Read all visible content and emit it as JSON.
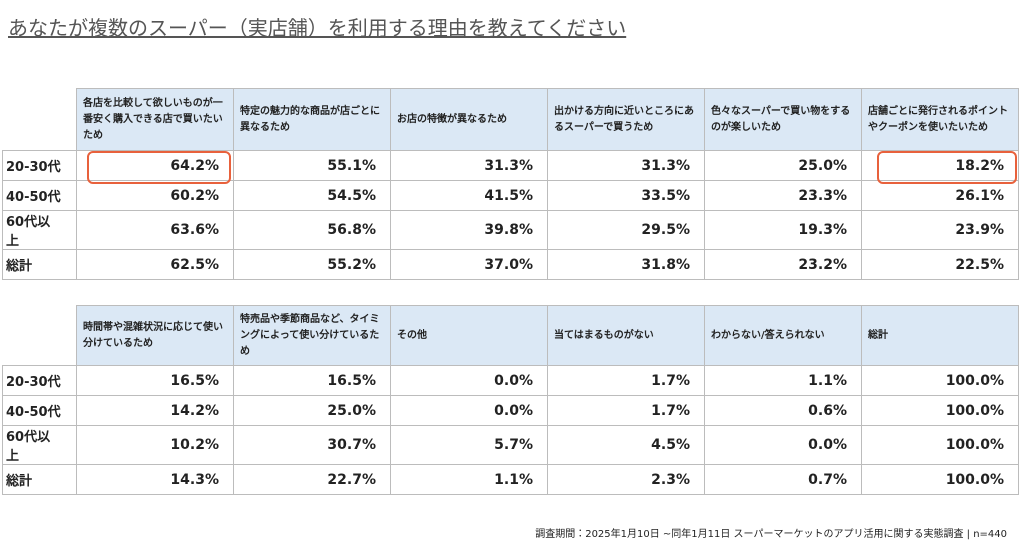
{
  "title": "あなたが複数のスーパー（実店舗）を利用する理由を教えてください",
  "tables": [
    {
      "headers": [
        "各店を比較して欲しいものが一番安く購入できる店で買いたいため",
        "特定の魅力的な商品が店ごとに異なるため",
        "お店の特徴が異なるため",
        "出かける方向に近いところにあるスーパーで買うため",
        "色々なスーパーで買い物をするのが楽しいため",
        "店舗ごとに発行されるポイントやクーポンを使いたいため"
      ],
      "rows": [
        {
          "label": "20-30代",
          "cells": [
            "64.2%",
            "55.1%",
            "31.3%",
            "31.3%",
            "25.0%",
            "18.2%"
          ]
        },
        {
          "label": "40-50代",
          "cells": [
            "60.2%",
            "54.5%",
            "41.5%",
            "33.5%",
            "23.3%",
            "26.1%"
          ]
        },
        {
          "label": "60代以上",
          "cells": [
            "63.6%",
            "56.8%",
            "39.8%",
            "29.5%",
            "19.3%",
            "23.9%"
          ]
        },
        {
          "label": "総計",
          "cells": [
            "62.5%",
            "55.2%",
            "37.0%",
            "31.8%",
            "23.2%",
            "22.5%"
          ]
        }
      ]
    },
    {
      "headers": [
        "時間帯や混雑状況に応じて使い分けているため",
        "特売品や季節商品など、タイミングによって使い分けているため",
        "その他",
        "当てはまるものがない",
        "わからない/答えられない",
        "総計"
      ],
      "rows": [
        {
          "label": "20-30代",
          "cells": [
            "16.5%",
            "16.5%",
            "0.0%",
            "1.7%",
            "1.1%",
            "100.0%"
          ]
        },
        {
          "label": "40-50代",
          "cells": [
            "14.2%",
            "25.0%",
            "0.0%",
            "1.7%",
            "0.6%",
            "100.0%"
          ]
        },
        {
          "label": "60代以上",
          "cells": [
            "10.2%",
            "30.7%",
            "5.7%",
            "4.5%",
            "0.0%",
            "100.0%"
          ]
        },
        {
          "label": "総計",
          "cells": [
            "14.3%",
            "22.7%",
            "1.1%",
            "2.3%",
            "0.7%",
            "100.0%"
          ]
        }
      ]
    }
  ],
  "footer": "調査期間：2025年1月10日 ~同年1月11日 スーパーマーケットのアプリ活用に関する実態調査 | n=440"
}
